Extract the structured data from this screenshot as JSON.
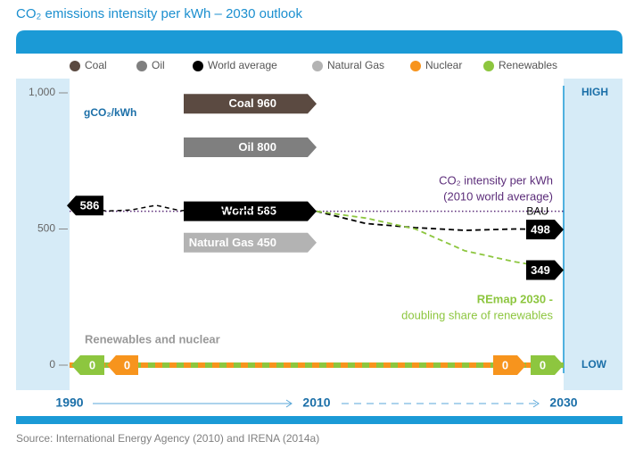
{
  "title": "CO₂ emissions intensity per kWh – 2030 outlook",
  "source": "Source: International Energy Agency (2010) and IRENA (2014a)",
  "chart_data": {
    "type": "line",
    "unit_label": "gCO₂/kWh",
    "scale_labels": {
      "high": "HIGH",
      "low": "LOW"
    },
    "xlim": [
      1990,
      2030
    ],
    "xticks": [
      1990,
      2010,
      2030
    ],
    "ylim": [
      0,
      1000
    ],
    "yticks": [
      0,
      500,
      {
        "value": 1000,
        "label": "1,000"
      }
    ],
    "legend": [
      {
        "name": "Coal",
        "color": "#5b4a41"
      },
      {
        "name": "Oil",
        "color": "#7f7f7f"
      },
      {
        "name": "World average",
        "color": "#000000"
      },
      {
        "name": "Natural Gas",
        "color": "#b3b3b3"
      },
      {
        "name": "Nuclear",
        "color": "#f7941d"
      },
      {
        "name": "Renewables",
        "color": "#8dc63f"
      }
    ],
    "levels_2010": [
      {
        "name": "Coal",
        "value": 960,
        "color": "#5b4a41"
      },
      {
        "name": "Oil",
        "value": 800,
        "color": "#7f7f7f"
      },
      {
        "name": "World",
        "value": 565,
        "color": "#000000"
      },
      {
        "name": "Natural Gas",
        "value": 450,
        "color": "#b3b3b3"
      }
    ],
    "series": [
      {
        "color": "#000000",
        "x": [
          1990,
          1993,
          1995,
          1997,
          1999,
          2001,
          2003,
          2006,
          2010
        ],
        "values": [
          586,
          566,
          570,
          587,
          567,
          577,
          567,
          570,
          565
        ]
      },
      {
        "name": "BAU",
        "color": "#000000",
        "x": [
          2010,
          2014,
          2018,
          2022,
          2026,
          2030
        ],
        "values": [
          565,
          520,
          505,
          495,
          500,
          498
        ]
      },
      {
        "name": "REmap 2030 -",
        "note": "doubling share of renewables",
        "color": "#8dc63f",
        "x": [
          2010,
          2014,
          2018,
          2022,
          2026,
          2030
        ],
        "values": [
          565,
          540,
          500,
          420,
          380,
          349
        ]
      },
      {
        "color": "#8dc63f",
        "x": [
          1990,
          2030
        ],
        "values": [
          0,
          0
        ]
      },
      {
        "color": "#f7941d",
        "x": [
          1990,
          2030
        ],
        "values": [
          0,
          0
        ]
      }
    ],
    "annotations": {
      "intensity": "CO₂ intensity per kWh",
      "intensity_note": "(2010 world average)",
      "renewables_nuclear": "Renewables and nuclear"
    }
  }
}
